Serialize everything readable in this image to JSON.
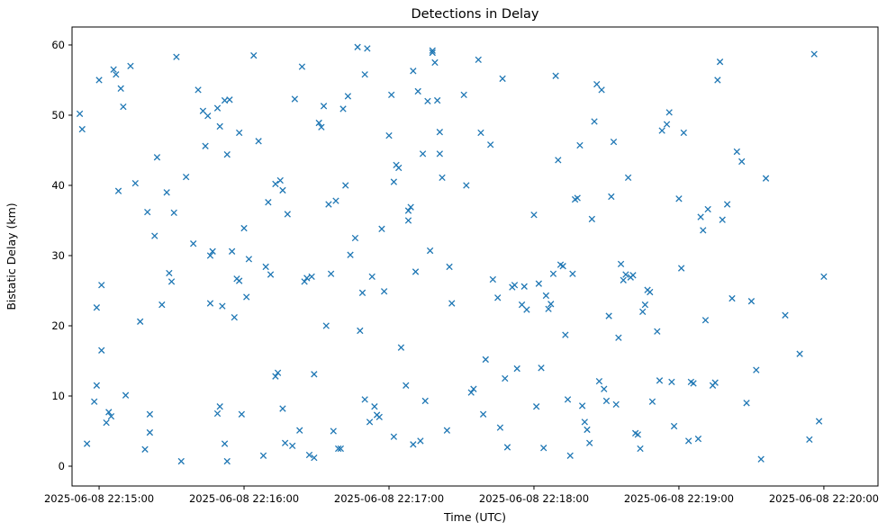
{
  "chart_data": {
    "type": "scatter",
    "title": "Detections in Delay",
    "xlabel": "Time (UTC)",
    "ylabel": "Bistatic Delay (km)",
    "marker": "x",
    "marker_color": "#1f77b4",
    "grid": false,
    "legend": "none",
    "x_axis": {
      "tick_labels": [
        "2025-06-08 22:15:00",
        "2025-06-08 22:16:00",
        "2025-06-08 22:17:00",
        "2025-06-08 22:18:00",
        "2025-06-08 22:19:00",
        "2025-06-08 22:20:00"
      ],
      "tick_seconds": [
        0,
        60,
        120,
        180,
        240,
        300
      ],
      "unit": "seconds after 2025-06-08 22:15:00 UTC",
      "range_seconds": [
        -11.2,
        322.4
      ]
    },
    "y_axis": {
      "tick_labels": [
        "0",
        "10",
        "20",
        "30",
        "40",
        "50",
        "60"
      ],
      "tick_values": [
        0,
        10,
        20,
        30,
        40,
        50,
        60
      ],
      "range": [
        -2.82,
        62.56
      ]
    },
    "points": [
      [
        -8,
        50.2
      ],
      [
        -7,
        48.0
      ],
      [
        -5,
        3.2
      ],
      [
        -2,
        9.2
      ],
      [
        -1,
        11.5
      ],
      [
        -1,
        22.6
      ],
      [
        0,
        55.0
      ],
      [
        1,
        25.8
      ],
      [
        1,
        16.5
      ],
      [
        3,
        6.2
      ],
      [
        4,
        7.7
      ],
      [
        5,
        7.1
      ],
      [
        6,
        56.5
      ],
      [
        7,
        55.8
      ],
      [
        8,
        39.2
      ],
      [
        9,
        53.8
      ],
      [
        10,
        51.2
      ],
      [
        11,
        10.1
      ],
      [
        13,
        57.0
      ],
      [
        15,
        40.3
      ],
      [
        17,
        20.6
      ],
      [
        19,
        2.4
      ],
      [
        20,
        36.2
      ],
      [
        21,
        7.4
      ],
      [
        21,
        4.8
      ],
      [
        23,
        32.8
      ],
      [
        24,
        44.0
      ],
      [
        26,
        23.0
      ],
      [
        28,
        39.0
      ],
      [
        29,
        27.5
      ],
      [
        30,
        26.3
      ],
      [
        31,
        36.1
      ],
      [
        32,
        58.3
      ],
      [
        34,
        0.7
      ],
      [
        36,
        41.2
      ],
      [
        39,
        31.7
      ],
      [
        41,
        53.6
      ],
      [
        43,
        50.6
      ],
      [
        44,
        45.6
      ],
      [
        45,
        49.9
      ],
      [
        46,
        30.0
      ],
      [
        46,
        23.2
      ],
      [
        47,
        30.6
      ],
      [
        49,
        51.0
      ],
      [
        49,
        7.5
      ],
      [
        50,
        8.5
      ],
      [
        50,
        48.4
      ],
      [
        51,
        22.8
      ],
      [
        52,
        52.1
      ],
      [
        52,
        3.2
      ],
      [
        53,
        0.7
      ],
      [
        53,
        44.4
      ],
      [
        54,
        52.2
      ],
      [
        55,
        30.6
      ],
      [
        56,
        21.2
      ],
      [
        57,
        26.7
      ],
      [
        58,
        26.4
      ],
      [
        58,
        47.5
      ],
      [
        59,
        7.4
      ],
      [
        60,
        33.9
      ],
      [
        61,
        24.1
      ],
      [
        62,
        29.5
      ],
      [
        64,
        58.5
      ],
      [
        66,
        46.3
      ],
      [
        68,
        1.5
      ],
      [
        69,
        28.4
      ],
      [
        70,
        37.6
      ],
      [
        71,
        27.3
      ],
      [
        73,
        40.2
      ],
      [
        73,
        12.8
      ],
      [
        74,
        13.3
      ],
      [
        75,
        40.7
      ],
      [
        76,
        8.2
      ],
      [
        76,
        39.3
      ],
      [
        77,
        3.3
      ],
      [
        78,
        35.9
      ],
      [
        80,
        2.9
      ],
      [
        81,
        52.3
      ],
      [
        83,
        5.1
      ],
      [
        84,
        56.9
      ],
      [
        85,
        26.3
      ],
      [
        86,
        26.8
      ],
      [
        87,
        1.6
      ],
      [
        88,
        27.0
      ],
      [
        89,
        13.1
      ],
      [
        89,
        1.2
      ],
      [
        91,
        48.9
      ],
      [
        92,
        48.3
      ],
      [
        93,
        51.3
      ],
      [
        94,
        20.0
      ],
      [
        95,
        37.3
      ],
      [
        96,
        27.4
      ],
      [
        97,
        5.0
      ],
      [
        98,
        37.8
      ],
      [
        99,
        2.5
      ],
      [
        100,
        2.5
      ],
      [
        101,
        50.9
      ],
      [
        102,
        40.0
      ],
      [
        103,
        52.7
      ],
      [
        104,
        30.1
      ],
      [
        106,
        32.5
      ],
      [
        107,
        59.7
      ],
      [
        108,
        19.3
      ],
      [
        109,
        24.7
      ],
      [
        110,
        9.5
      ],
      [
        110,
        55.8
      ],
      [
        111,
        59.5
      ],
      [
        112,
        6.3
      ],
      [
        113,
        27.0
      ],
      [
        114,
        8.5
      ],
      [
        115,
        7.3
      ],
      [
        116,
        7.0
      ],
      [
        117,
        33.8
      ],
      [
        118,
        24.9
      ],
      [
        120,
        47.1
      ],
      [
        121,
        52.9
      ],
      [
        122,
        4.2
      ],
      [
        122,
        40.5
      ],
      [
        123,
        42.9
      ],
      [
        124,
        42.5
      ],
      [
        125,
        16.9
      ],
      [
        127,
        11.5
      ],
      [
        128,
        35.0
      ],
      [
        128,
        36.4
      ],
      [
        129,
        36.9
      ],
      [
        130,
        56.3
      ],
      [
        130,
        3.1
      ],
      [
        131,
        27.7
      ],
      [
        132,
        53.4
      ],
      [
        133,
        3.6
      ],
      [
        134,
        44.5
      ],
      [
        135,
        9.3
      ],
      [
        136,
        52.0
      ],
      [
        137,
        30.7
      ],
      [
        138,
        58.9
      ],
      [
        138,
        59.2
      ],
      [
        139,
        57.5
      ],
      [
        140,
        52.1
      ],
      [
        141,
        47.6
      ],
      [
        141,
        44.5
      ],
      [
        142,
        41.1
      ],
      [
        144,
        5.1
      ],
      [
        145,
        28.4
      ],
      [
        146,
        23.2
      ],
      [
        151,
        52.9
      ],
      [
        152,
        40.0
      ],
      [
        154,
        10.5
      ],
      [
        155,
        11.0
      ],
      [
        157,
        57.9
      ],
      [
        158,
        47.5
      ],
      [
        159,
        7.4
      ],
      [
        160,
        15.2
      ],
      [
        162,
        45.8
      ],
      [
        163,
        26.6
      ],
      [
        165,
        24.0
      ],
      [
        166,
        5.5
      ],
      [
        167,
        55.2
      ],
      [
        168,
        12.5
      ],
      [
        169,
        2.7
      ],
      [
        171,
        25.5
      ],
      [
        172,
        25.8
      ],
      [
        173,
        13.9
      ],
      [
        175,
        23.0
      ],
      [
        176,
        25.6
      ],
      [
        177,
        22.3
      ],
      [
        180,
        35.8
      ],
      [
        181,
        8.5
      ],
      [
        182,
        26.0
      ],
      [
        183,
        14.0
      ],
      [
        184,
        2.6
      ],
      [
        185,
        24.3
      ],
      [
        186,
        22.4
      ],
      [
        187,
        23.1
      ],
      [
        188,
        27.4
      ],
      [
        189,
        55.6
      ],
      [
        190,
        43.6
      ],
      [
        191,
        28.7
      ],
      [
        192,
        28.5
      ],
      [
        193,
        18.7
      ],
      [
        194,
        9.5
      ],
      [
        195,
        1.5
      ],
      [
        196,
        27.4
      ],
      [
        197,
        38.0
      ],
      [
        198,
        38.2
      ],
      [
        199,
        45.7
      ],
      [
        200,
        8.6
      ],
      [
        201,
        6.3
      ],
      [
        202,
        5.2
      ],
      [
        203,
        3.3
      ],
      [
        204,
        35.2
      ],
      [
        205,
        49.1
      ],
      [
        206,
        54.4
      ],
      [
        207,
        12.1
      ],
      [
        208,
        53.6
      ],
      [
        209,
        11.0
      ],
      [
        210,
        9.3
      ],
      [
        211,
        21.4
      ],
      [
        212,
        38.4
      ],
      [
        213,
        46.2
      ],
      [
        214,
        8.8
      ],
      [
        215,
        18.3
      ],
      [
        216,
        28.8
      ],
      [
        217,
        26.5
      ],
      [
        218,
        27.3
      ],
      [
        219,
        41.1
      ],
      [
        220,
        26.9
      ],
      [
        221,
        27.2
      ],
      [
        222,
        4.7
      ],
      [
        223,
        4.5
      ],
      [
        224,
        2.5
      ],
      [
        225,
        22.0
      ],
      [
        226,
        23.0
      ],
      [
        227,
        25.1
      ],
      [
        228,
        24.8
      ],
      [
        229,
        9.2
      ],
      [
        231,
        19.2
      ],
      [
        232,
        12.2
      ],
      [
        233,
        47.8
      ],
      [
        235,
        48.7
      ],
      [
        236,
        50.4
      ],
      [
        237,
        12.0
      ],
      [
        238,
        5.7
      ],
      [
        240,
        38.1
      ],
      [
        241,
        28.2
      ],
      [
        242,
        47.5
      ],
      [
        244,
        3.6
      ],
      [
        245,
        12.0
      ],
      [
        246,
        11.8
      ],
      [
        248,
        3.9
      ],
      [
        249,
        35.5
      ],
      [
        250,
        33.6
      ],
      [
        251,
        20.8
      ],
      [
        252,
        36.6
      ],
      [
        254,
        11.5
      ],
      [
        255,
        11.9
      ],
      [
        256,
        55.0
      ],
      [
        257,
        57.6
      ],
      [
        258,
        35.1
      ],
      [
        260,
        37.3
      ],
      [
        262,
        23.9
      ],
      [
        264,
        44.8
      ],
      [
        266,
        43.4
      ],
      [
        268,
        9.0
      ],
      [
        270,
        23.5
      ],
      [
        272,
        13.7
      ],
      [
        274,
        1.0
      ],
      [
        276,
        41.0
      ],
      [
        284,
        21.5
      ],
      [
        290,
        16.0
      ],
      [
        294,
        3.8
      ],
      [
        296,
        58.7
      ],
      [
        298,
        6.4
      ],
      [
        300,
        27.0
      ]
    ]
  }
}
